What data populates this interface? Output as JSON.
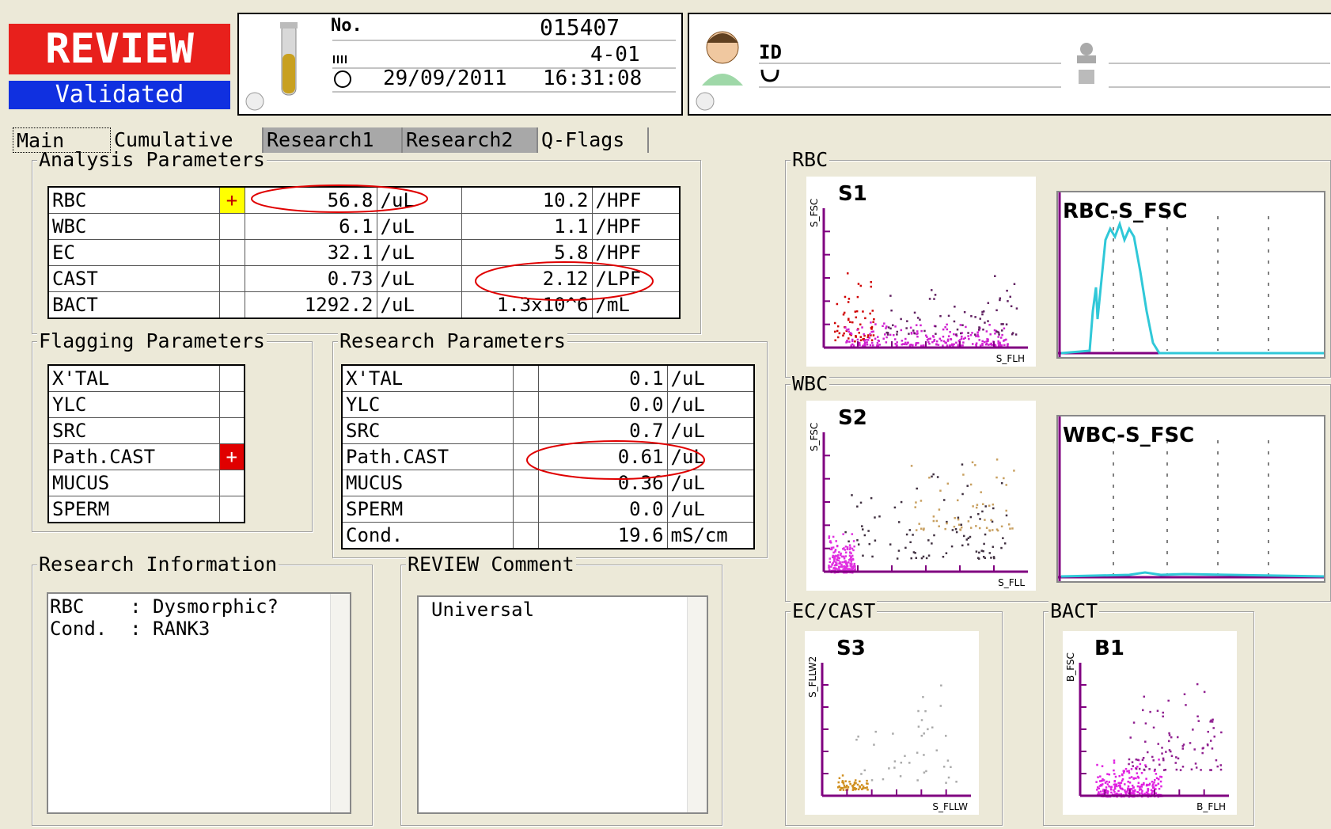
{
  "status": {
    "review": "REVIEW",
    "validated": "Validated"
  },
  "sample": {
    "no_label": "No.",
    "no": "015407",
    "rack": "4-01",
    "date": "29/09/2011",
    "time": "16:31:08"
  },
  "patient": {
    "id_label": "ID"
  },
  "tabs": [
    "Main",
    "Cumulative",
    "Research1",
    "Research2",
    "Q-Flags"
  ],
  "analysis": {
    "title": "Analysis Parameters",
    "rows": [
      {
        "name": "RBC",
        "flag": "+",
        "flag_color": "#ffff00",
        "flag_text_color": "#c00000",
        "value": "56.8",
        "unit": "/uL",
        "value2": "10.2",
        "unit2": "/HPF"
      },
      {
        "name": "WBC",
        "value": "6.1",
        "unit": "/uL",
        "value2": "1.1",
        "unit2": "/HPF"
      },
      {
        "name": "EC",
        "value": "32.1",
        "unit": "/uL",
        "value2": "5.8",
        "unit2": "/HPF"
      },
      {
        "name": "CAST",
        "value": "0.73",
        "unit": "/uL",
        "value2": "2.12",
        "unit2": "/LPF"
      },
      {
        "name": "BACT",
        "value": "1292.2",
        "unit": "/uL",
        "value2": "1.3x10^6",
        "unit2": "/mL"
      }
    ]
  },
  "flagging": {
    "title": "Flagging Parameters",
    "rows": [
      {
        "name": "X'TAL"
      },
      {
        "name": "YLC"
      },
      {
        "name": "SRC"
      },
      {
        "name": "Path.CAST",
        "flag": "+",
        "flag_color": "#e00000",
        "flag_text_color": "#ffffff"
      },
      {
        "name": "MUCUS"
      },
      {
        "name": "SPERM"
      }
    ]
  },
  "research": {
    "title": "Research Parameters",
    "rows": [
      {
        "name": "X'TAL",
        "value": "0.1",
        "unit": "/uL"
      },
      {
        "name": "YLC",
        "value": "0.0",
        "unit": "/uL"
      },
      {
        "name": "SRC",
        "value": "0.7",
        "unit": "/uL"
      },
      {
        "name": "Path.CAST",
        "value": "0.61",
        "unit": "/uL"
      },
      {
        "name": "MUCUS",
        "value": "0.36",
        "unit": "/uL"
      },
      {
        "name": "SPERM",
        "value": "0.0",
        "unit": "/uL"
      },
      {
        "name": "Cond.",
        "value": "19.6",
        "unit": "mS/cm"
      }
    ]
  },
  "research_info": {
    "title": "Research Information",
    "lines": [
      "RBC    : Dysmorphic?",
      "Cond.  : RANK3"
    ]
  },
  "comment": {
    "title": "REVIEW Comment",
    "text": "Universal"
  },
  "plots": [
    {
      "title": "RBC",
      "scatter": {
        "name": "S1",
        "y_label": "S_FSC",
        "x_label": "S_FLH"
      },
      "histogram": {
        "name": "RBC-S_FSC"
      }
    },
    {
      "title": "WBC",
      "scatter": {
        "name": "S2",
        "y_label": "S_FSC",
        "x_label": "S_FLL"
      },
      "histogram": {
        "name": "WBC-S_FSC"
      }
    },
    {
      "title": "EC/CAST",
      "scatter": {
        "name": "S3",
        "y_label": "S_FLLW2",
        "x_label": "S_FLLW"
      }
    },
    {
      "title": "BACT",
      "scatter": {
        "name": "B1",
        "y_label": "B_FSC",
        "x_label": "B_FLH"
      }
    }
  ]
}
